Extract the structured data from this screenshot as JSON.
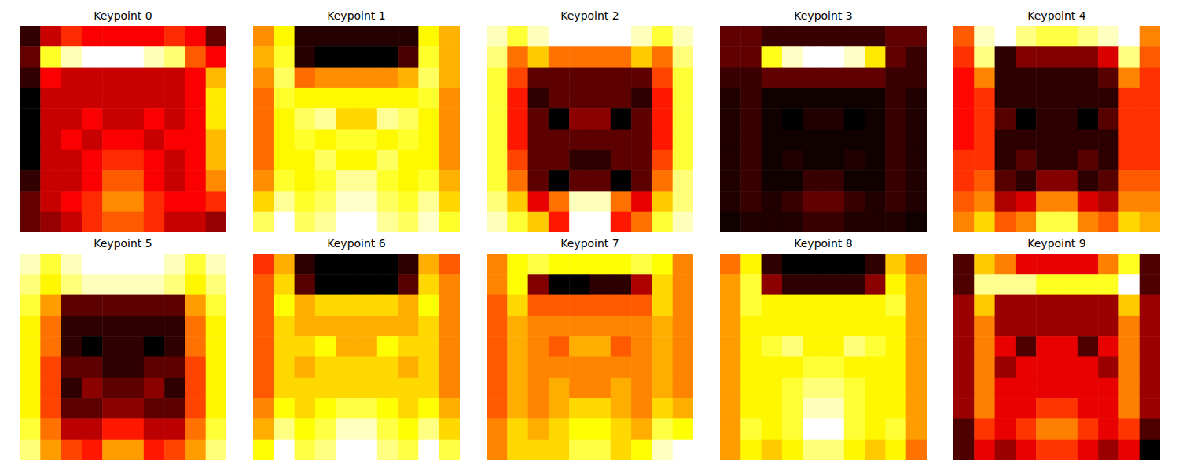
{
  "chart_data": [
    {
      "type": "heatmap",
      "title": "Keypoint 0",
      "tick_labels": false,
      "cells": [
        [
          0.3,
          0.45,
          0.55,
          0.5,
          0.5,
          0.5,
          0.5,
          0.55,
          0.5,
          0.35
        ],
        [
          0.35,
          0.8,
          0.9,
          0.95,
          0.95,
          0.95,
          0.9,
          0.85,
          0.6,
          0.5
        ],
        [
          0.3,
          0.5,
          0.45,
          0.45,
          0.45,
          0.45,
          0.45,
          0.45,
          0.5,
          0.7
        ],
        [
          0.25,
          0.45,
          0.45,
          0.45,
          0.45,
          0.45,
          0.45,
          0.45,
          0.5,
          0.75
        ],
        [
          0.25,
          0.45,
          0.45,
          0.5,
          0.45,
          0.45,
          0.5,
          0.45,
          0.5,
          0.75
        ],
        [
          0.25,
          0.45,
          0.5,
          0.45,
          0.5,
          0.5,
          0.45,
          0.5,
          0.5,
          0.7
        ],
        [
          0.25,
          0.45,
          0.45,
          0.5,
          0.55,
          0.55,
          0.5,
          0.45,
          0.5,
          0.7
        ],
        [
          0.3,
          0.45,
          0.45,
          0.5,
          0.6,
          0.6,
          0.5,
          0.45,
          0.5,
          0.65
        ],
        [
          0.35,
          0.45,
          0.5,
          0.55,
          0.65,
          0.65,
          0.55,
          0.5,
          0.5,
          0.55
        ],
        [
          0.35,
          0.4,
          0.45,
          0.55,
          0.6,
          0.6,
          0.55,
          0.45,
          0.45,
          0.4
        ]
      ]
    },
    {
      "type": "heatmap",
      "title": "Keypoint 1",
      "tick_labels": false,
      "cells": [
        [
          0.55,
          0.7,
          0.05,
          0.05,
          0.05,
          0.05,
          0.05,
          0.05,
          0.7,
          0.6
        ],
        [
          0.6,
          0.75,
          0.05,
          0,
          0,
          0,
          0,
          0.1,
          0.75,
          0.6
        ],
        [
          0.55,
          0.8,
          0.5,
          0.55,
          0.55,
          0.55,
          0.55,
          0.6,
          0.8,
          0.6
        ],
        [
          0.5,
          0.75,
          0.7,
          0.7,
          0.7,
          0.7,
          0.7,
          0.7,
          0.75,
          0.55
        ],
        [
          0.5,
          0.7,
          0.8,
          0.85,
          0.65,
          0.65,
          0.85,
          0.8,
          0.7,
          0.55
        ],
        [
          0.5,
          0.7,
          0.75,
          0.7,
          0.75,
          0.75,
          0.7,
          0.75,
          0.7,
          0.55
        ],
        [
          0.5,
          0.7,
          0.7,
          0.8,
          0.7,
          0.7,
          0.8,
          0.7,
          0.7,
          0.55
        ],
        [
          0.55,
          0.75,
          0.7,
          0.75,
          0.85,
          0.85,
          0.75,
          0.7,
          0.75,
          0.6
        ],
        [
          0.65,
          0.85,
          0.75,
          0.8,
          0.9,
          0.9,
          0.8,
          0.75,
          0.85,
          0.65
        ],
        [
          0.8,
          0.95,
          0.8,
          0.85,
          0.95,
          0.95,
          0.85,
          0.8,
          0.9,
          0.75
        ]
      ]
    },
    {
      "type": "heatmap",
      "title": "Keypoint 2",
      "tick_labels": false,
      "cells": [
        [
          0.9,
          0.8,
          0.9,
          0.95,
          0.95,
          0.95,
          0.95,
          0.9,
          0.8,
          0.9
        ],
        [
          0.85,
          0.6,
          0.7,
          0.6,
          0.6,
          0.6,
          0.6,
          0.7,
          0.6,
          0.85
        ],
        [
          0.8,
          0.55,
          0.3,
          0.3,
          0.3,
          0.3,
          0.3,
          0.3,
          0.55,
          0.8
        ],
        [
          0.8,
          0.5,
          0.25,
          0.3,
          0.3,
          0.3,
          0.3,
          0.25,
          0.5,
          0.8
        ],
        [
          0.8,
          0.5,
          0.3,
          0.2,
          0.35,
          0.35,
          0.2,
          0.3,
          0.5,
          0.8
        ],
        [
          0.8,
          0.5,
          0.3,
          0.3,
          0.3,
          0.3,
          0.3,
          0.3,
          0.5,
          0.8
        ],
        [
          0.8,
          0.55,
          0.3,
          0.3,
          0.25,
          0.25,
          0.3,
          0.3,
          0.55,
          0.8
        ],
        [
          0.8,
          0.6,
          0.3,
          0.2,
          0.3,
          0.3,
          0.2,
          0.3,
          0.6,
          0.85
        ],
        [
          0.85,
          0.7,
          0.45,
          0.6,
          0.9,
          0.9,
          0.6,
          0.45,
          0.7,
          0.85
        ],
        [
          0.9,
          0.8,
          0.7,
          0.5,
          0.95,
          0.95,
          0.5,
          0.6,
          0.8,
          0.9
        ]
      ]
    },
    {
      "type": "heatmap",
      "title": "Keypoint 3",
      "tick_labels": false,
      "cells": [
        [
          0.2,
          0.2,
          0.15,
          0.15,
          0.15,
          0.15,
          0.15,
          0.15,
          0.2,
          0.2
        ],
        [
          0.2,
          0.2,
          0.75,
          0.9,
          0.95,
          0.95,
          0.9,
          0.7,
          0.2,
          0.15
        ],
        [
          0.15,
          0.15,
          0.2,
          0.2,
          0.2,
          0.2,
          0.2,
          0.2,
          0.15,
          0.15
        ],
        [
          0.12,
          0.15,
          0.1,
          0.1,
          0.1,
          0.1,
          0.1,
          0.1,
          0.15,
          0.12
        ],
        [
          0.12,
          0.15,
          0.1,
          0.08,
          0.12,
          0.12,
          0.08,
          0.1,
          0.15,
          0.12
        ],
        [
          0.12,
          0.15,
          0.1,
          0.1,
          0.1,
          0.1,
          0.1,
          0.1,
          0.15,
          0.12
        ],
        [
          0.12,
          0.15,
          0.1,
          0.12,
          0.1,
          0.1,
          0.12,
          0.1,
          0.15,
          0.12
        ],
        [
          0.12,
          0.15,
          0.1,
          0.1,
          0.15,
          0.15,
          0.1,
          0.1,
          0.15,
          0.12
        ],
        [
          0.12,
          0.15,
          0.12,
          0.15,
          0.2,
          0.2,
          0.15,
          0.12,
          0.15,
          0.12
        ],
        [
          0.1,
          0.12,
          0.12,
          0.12,
          0.15,
          0.15,
          0.12,
          0.12,
          0.12,
          0.1
        ]
      ]
    },
    {
      "type": "heatmap",
      "title": "Keypoint 4",
      "tick_labels": false,
      "cells": [
        [
          0.55,
          0.9,
          0.95,
          0.85,
          0.8,
          0.8,
          0.85,
          0.9,
          0.95,
          0.6
        ],
        [
          0.5,
          0.85,
          0.2,
          0.3,
          0.3,
          0.3,
          0.3,
          0.4,
          0.85,
          0.55
        ],
        [
          0.45,
          0.6,
          0.2,
          0.2,
          0.2,
          0.2,
          0.2,
          0.25,
          0.6,
          0.5
        ],
        [
          0.45,
          0.5,
          0.2,
          0.2,
          0.2,
          0.2,
          0.2,
          0.2,
          0.5,
          0.5
        ],
        [
          0.45,
          0.5,
          0.25,
          0.15,
          0.2,
          0.2,
          0.15,
          0.25,
          0.5,
          0.5
        ],
        [
          0.45,
          0.5,
          0.2,
          0.2,
          0.2,
          0.2,
          0.2,
          0.2,
          0.5,
          0.5
        ],
        [
          0.5,
          0.5,
          0.2,
          0.25,
          0.2,
          0.2,
          0.25,
          0.2,
          0.5,
          0.5
        ],
        [
          0.5,
          0.55,
          0.25,
          0.2,
          0.3,
          0.3,
          0.2,
          0.25,
          0.55,
          0.55
        ],
        [
          0.55,
          0.6,
          0.35,
          0.4,
          0.6,
          0.6,
          0.4,
          0.35,
          0.6,
          0.6
        ],
        [
          0.6,
          0.7,
          0.55,
          0.6,
          0.8,
          0.8,
          0.6,
          0.55,
          0.7,
          0.65
        ]
      ]
    },
    {
      "type": "heatmap",
      "title": "Keypoint 5",
      "tick_labels": false,
      "cells": [
        [
          0.8,
          0.7,
          0.8,
          0.85,
          0.85,
          0.85,
          0.85,
          0.8,
          0.7,
          0.8
        ],
        [
          0.75,
          0.65,
          0.75,
          0.8,
          0.8,
          0.8,
          0.8,
          0.75,
          0.65,
          0.75
        ],
        [
          0.7,
          0.55,
          0.2,
          0.2,
          0.2,
          0.2,
          0.2,
          0.2,
          0.55,
          0.7
        ],
        [
          0.65,
          0.5,
          0.15,
          0.15,
          0.15,
          0.15,
          0.15,
          0.15,
          0.5,
          0.65
        ],
        [
          0.65,
          0.5,
          0.15,
          0.1,
          0.15,
          0.15,
          0.1,
          0.15,
          0.5,
          0.65
        ],
        [
          0.65,
          0.45,
          0.2,
          0.2,
          0.15,
          0.15,
          0.2,
          0.2,
          0.45,
          0.65
        ],
        [
          0.65,
          0.45,
          0.15,
          0.25,
          0.2,
          0.2,
          0.25,
          0.15,
          0.45,
          0.65
        ],
        [
          0.65,
          0.45,
          0.2,
          0.2,
          0.25,
          0.25,
          0.2,
          0.2,
          0.45,
          0.65
        ],
        [
          0.7,
          0.5,
          0.3,
          0.3,
          0.4,
          0.4,
          0.3,
          0.3,
          0.5,
          0.7
        ],
        [
          0.75,
          0.55,
          0.45,
          0.4,
          0.55,
          0.55,
          0.4,
          0.45,
          0.55,
          0.75
        ]
      ]
    },
    {
      "type": "heatmap",
      "title": "Keypoint 6",
      "tick_labels": false,
      "cells": [
        [
          0.4,
          0.55,
          0.1,
          0.05,
          0.05,
          0.05,
          0.05,
          0.1,
          0.55,
          0.45
        ],
        [
          0.45,
          0.6,
          0.15,
          0.05,
          0.05,
          0.05,
          0.05,
          0.15,
          0.6,
          0.5
        ],
        [
          0.45,
          0.65,
          0.55,
          0.6,
          0.6,
          0.6,
          0.6,
          0.55,
          0.65,
          0.5
        ],
        [
          0.45,
          0.6,
          0.55,
          0.55,
          0.55,
          0.55,
          0.55,
          0.55,
          0.6,
          0.5
        ],
        [
          0.45,
          0.6,
          0.6,
          0.65,
          0.55,
          0.55,
          0.65,
          0.6,
          0.6,
          0.5
        ],
        [
          0.45,
          0.6,
          0.55,
          0.6,
          0.6,
          0.6,
          0.6,
          0.55,
          0.6,
          0.5
        ],
        [
          0.45,
          0.6,
          0.6,
          0.6,
          0.6,
          0.6,
          0.6,
          0.6,
          0.6,
          0.5
        ],
        [
          0.5,
          0.65,
          0.6,
          0.65,
          0.7,
          0.7,
          0.65,
          0.6,
          0.65,
          0.55
        ],
        [
          0.55,
          0.75,
          0.65,
          0.7,
          0.8,
          0.8,
          0.7,
          0.65,
          0.75,
          0.6
        ],
        [
          0.65,
          0.85,
          0.7,
          0.75,
          0.85,
          0.85,
          0.75,
          0.7,
          0.85,
          0.7
        ]
      ]
    },
    {
      "type": "heatmap",
      "title": "Keypoint 7",
      "tick_labels": false,
      "cells": [
        [
          0.6,
          0.75,
          0.8,
          0.75,
          0.75,
          0.75,
          0.75,
          0.8,
          0.75,
          0.6
        ],
        [
          0.6,
          0.75,
          0.3,
          0.15,
          0.15,
          0.2,
          0.2,
          0.35,
          0.7,
          0.6
        ],
        [
          0.55,
          0.7,
          0.55,
          0.55,
          0.55,
          0.55,
          0.55,
          0.55,
          0.7,
          0.6
        ],
        [
          0.55,
          0.65,
          0.6,
          0.6,
          0.6,
          0.6,
          0.6,
          0.6,
          0.65,
          0.6
        ],
        [
          0.55,
          0.65,
          0.6,
          0.55,
          0.65,
          0.65,
          0.55,
          0.6,
          0.65,
          0.6
        ],
        [
          0.55,
          0.65,
          0.6,
          0.6,
          0.6,
          0.6,
          0.6,
          0.6,
          0.65,
          0.6
        ],
        [
          0.55,
          0.65,
          0.6,
          0.65,
          0.6,
          0.6,
          0.65,
          0.6,
          0.65,
          0.6
        ],
        [
          0.55,
          0.65,
          0.6,
          0.65,
          0.7,
          0.7,
          0.65,
          0.6,
          0.7,
          0.65
        ],
        [
          0.6,
          0.7,
          0.65,
          0.7,
          0.75,
          0.75,
          0.7,
          0.65,
          0.8,
          0.75
        ],
        [
          0.6,
          0.7,
          0.7,
          0.7,
          0.8,
          0.8,
          0.7,
          0.75,
          0.9,
          0.95
        ]
      ]
    },
    {
      "type": "heatmap",
      "title": "Keypoint 8",
      "tick_labels": false,
      "cells": [
        [
          0.45,
          0.6,
          0.1,
          0.05,
          0.05,
          0.05,
          0.05,
          0.1,
          0.55,
          0.45
        ],
        [
          0.5,
          0.65,
          0.2,
          0.1,
          0.1,
          0.1,
          0.1,
          0.2,
          0.6,
          0.5
        ],
        [
          0.5,
          0.65,
          0.6,
          0.6,
          0.6,
          0.6,
          0.6,
          0.6,
          0.65,
          0.5
        ],
        [
          0.5,
          0.6,
          0.6,
          0.6,
          0.6,
          0.6,
          0.6,
          0.6,
          0.6,
          0.5
        ],
        [
          0.5,
          0.6,
          0.65,
          0.7,
          0.6,
          0.6,
          0.7,
          0.65,
          0.6,
          0.5
        ],
        [
          0.5,
          0.6,
          0.6,
          0.6,
          0.65,
          0.65,
          0.6,
          0.6,
          0.6,
          0.5
        ],
        [
          0.5,
          0.6,
          0.6,
          0.65,
          0.7,
          0.7,
          0.65,
          0.6,
          0.6,
          0.5
        ],
        [
          0.5,
          0.6,
          0.6,
          0.65,
          0.75,
          0.75,
          0.65,
          0.6,
          0.6,
          0.5
        ],
        [
          0.5,
          0.65,
          0.6,
          0.65,
          0.8,
          0.8,
          0.65,
          0.6,
          0.65,
          0.5
        ],
        [
          0.5,
          0.6,
          0.55,
          0.6,
          0.7,
          0.7,
          0.6,
          0.55,
          0.6,
          0.45
        ]
      ]
    },
    {
      "type": "heatmap",
      "title": "Keypoint 9",
      "tick_labels": false,
      "cells": [
        [
          0.5,
          0.75,
          0.7,
          0.6,
          0.6,
          0.6,
          0.6,
          0.7,
          0.8,
          0.5
        ],
        [
          0.5,
          0.85,
          0.85,
          0.85,
          0.8,
          0.8,
          0.8,
          0.8,
          0.9,
          0.5
        ],
        [
          0.55,
          0.75,
          0.55,
          0.55,
          0.55,
          0.55,
          0.55,
          0.55,
          0.75,
          0.55
        ],
        [
          0.55,
          0.7,
          0.55,
          0.55,
          0.55,
          0.55,
          0.55,
          0.55,
          0.7,
          0.55
        ],
        [
          0.55,
          0.7,
          0.6,
          0.5,
          0.6,
          0.6,
          0.5,
          0.6,
          0.7,
          0.55
        ],
        [
          0.55,
          0.7,
          0.55,
          0.6,
          0.6,
          0.6,
          0.6,
          0.55,
          0.7,
          0.55
        ],
        [
          0.55,
          0.7,
          0.6,
          0.6,
          0.6,
          0.6,
          0.6,
          0.6,
          0.7,
          0.55
        ],
        [
          0.55,
          0.7,
          0.6,
          0.6,
          0.65,
          0.65,
          0.6,
          0.6,
          0.7,
          0.55
        ],
        [
          0.5,
          0.65,
          0.6,
          0.65,
          0.7,
          0.7,
          0.65,
          0.6,
          0.65,
          0.5
        ],
        [
          0.5,
          0.6,
          0.55,
          0.6,
          0.65,
          0.65,
          0.6,
          0.55,
          0.6,
          0.45
        ]
      ]
    }
  ]
}
